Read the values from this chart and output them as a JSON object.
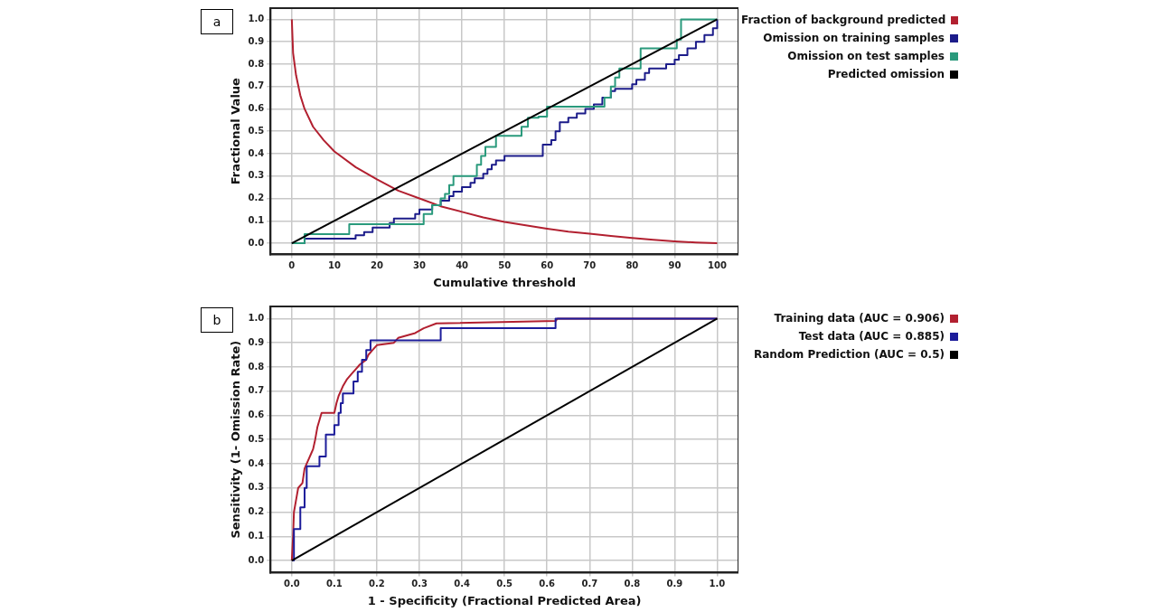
{
  "chart_data": [
    {
      "type": "line",
      "annotations": [
        "a"
      ],
      "xlabel": "Cumulative threshold",
      "ylabel": "Fractional Value",
      "xlim": [
        -5,
        105
      ],
      "ylim": [
        -0.05,
        1.05
      ],
      "xticks": [
        0,
        10,
        20,
        30,
        40,
        50,
        60,
        70,
        80,
        90,
        100
      ],
      "yticks": [
        {
          "value": 0,
          "label": "0.0"
        },
        {
          "value": 0.1,
          "label": "0.1"
        },
        {
          "value": 0.2,
          "label": "0.2"
        },
        {
          "value": 0.3,
          "label": "0.3"
        },
        {
          "value": 0.4,
          "label": "0.4"
        },
        {
          "value": 0.5,
          "label": "0.5"
        },
        {
          "value": 0.6,
          "label": "0.6"
        },
        {
          "value": 0.7,
          "label": "0.7"
        },
        {
          "value": 0.8,
          "label": "0.8"
        },
        {
          "value": 0.9,
          "label": "0.9"
        },
        {
          "value": 1,
          "label": "1.0"
        }
      ],
      "grid": true,
      "legend": "top right",
      "series": [
        {
          "name": "Fraction of background predicted",
          "type": "line",
          "color": "#b22030",
          "x": [
            0,
            0.3,
            1,
            2,
            3,
            5,
            7.5,
            10,
            15,
            20,
            25,
            30,
            35,
            40,
            45,
            50,
            55,
            60,
            65,
            70,
            75,
            80,
            85,
            90,
            95,
            100
          ],
          "values": [
            1,
            0.85,
            0.75,
            0.66,
            0.6,
            0.52,
            0.46,
            0.41,
            0.34,
            0.285,
            0.235,
            0.2,
            0.165,
            0.14,
            0.115,
            0.095,
            0.08,
            0.065,
            0.052,
            0.042,
            0.032,
            0.023,
            0.015,
            0.008,
            0.003,
            0
          ]
        },
        {
          "name": "Omission on training samples",
          "type": "step",
          "color": "#1c1c8a",
          "x": [
            0,
            3,
            15,
            17,
            19,
            23,
            24,
            29,
            30,
            33,
            35,
            37,
            38,
            40,
            42,
            43,
            45,
            46,
            47,
            48,
            50,
            59,
            61,
            62,
            63,
            65,
            67,
            69,
            71,
            73,
            75,
            76,
            80,
            81,
            83,
            84,
            85,
            88,
            90,
            91,
            93,
            95,
            97,
            99,
            100
          ],
          "values": [
            0,
            0.02,
            0.035,
            0.05,
            0.07,
            0.09,
            0.11,
            0.13,
            0.15,
            0.17,
            0.19,
            0.21,
            0.23,
            0.25,
            0.27,
            0.29,
            0.31,
            0.33,
            0.35,
            0.37,
            0.39,
            0.44,
            0.46,
            0.5,
            0.54,
            0.56,
            0.58,
            0.6,
            0.62,
            0.65,
            0.68,
            0.69,
            0.71,
            0.73,
            0.76,
            0.78,
            0.78,
            0.8,
            0.82,
            0.84,
            0.87,
            0.9,
            0.93,
            0.96,
            1
          ]
        },
        {
          "name": "Omission on test samples",
          "type": "step",
          "color": "#2a9a7c",
          "x": [
            0,
            3,
            13.5,
            31,
            33,
            35,
            36,
            37,
            38,
            43.5,
            44.5,
            45.5,
            48,
            54,
            55.5,
            58,
            60,
            73.5,
            75,
            76,
            77,
            82,
            90.5,
            91.5,
            100
          ],
          "values": [
            0,
            0.04,
            0.085,
            0.13,
            0.17,
            0.2,
            0.22,
            0.26,
            0.3,
            0.35,
            0.39,
            0.43,
            0.48,
            0.52,
            0.56,
            0.565,
            0.61,
            0.65,
            0.7,
            0.74,
            0.78,
            0.87,
            0.91,
            1,
            1
          ]
        },
        {
          "name": "Predicted omission",
          "type": "line",
          "color": "#000000",
          "x": [
            0,
            100
          ],
          "values": [
            0,
            1
          ]
        }
      ]
    },
    {
      "type": "line",
      "annotations": [
        "b"
      ],
      "xlabel": "1 - Specificity (Fractional Predicted Area)",
      "ylabel": "Sensitivity (1- Omission Rate)",
      "xlim": [
        -0.05,
        1.05
      ],
      "ylim": [
        -0.05,
        1.05
      ],
      "xticks": [
        {
          "value": 0,
          "label": "0.0"
        },
        {
          "value": 0.1,
          "label": "0.1"
        },
        {
          "value": 0.2,
          "label": "0.2"
        },
        {
          "value": 0.3,
          "label": "0.3"
        },
        {
          "value": 0.4,
          "label": "0.4"
        },
        {
          "value": 0.5,
          "label": "0.5"
        },
        {
          "value": 0.6,
          "label": "0.6"
        },
        {
          "value": 0.7,
          "label": "0.7"
        },
        {
          "value": 0.8,
          "label": "0.8"
        },
        {
          "value": 0.9,
          "label": "0.9"
        },
        {
          "value": 1,
          "label": "1.0"
        }
      ],
      "yticks": [
        {
          "value": 0,
          "label": "0.0"
        },
        {
          "value": 0.1,
          "label": "0.1"
        },
        {
          "value": 0.2,
          "label": "0.2"
        },
        {
          "value": 0.3,
          "label": "0.3"
        },
        {
          "value": 0.4,
          "label": "0.4"
        },
        {
          "value": 0.5,
          "label": "0.5"
        },
        {
          "value": 0.6,
          "label": "0.6"
        },
        {
          "value": 0.7,
          "label": "0.7"
        },
        {
          "value": 0.8,
          "label": "0.8"
        },
        {
          "value": 0.9,
          "label": "0.9"
        },
        {
          "value": 1,
          "label": "1.0"
        }
      ],
      "grid": true,
      "legend": "top right",
      "series": [
        {
          "name": "Training data (AUC = 0.906)",
          "type": "line",
          "color": "#b22030",
          "x": [
            0,
            0.003,
            0.005,
            0.01,
            0.015,
            0.025,
            0.03,
            0.035,
            0.04,
            0.045,
            0.05,
            0.055,
            0.06,
            0.07,
            0.1,
            0.105,
            0.11,
            0.12,
            0.13,
            0.14,
            0.15,
            0.16,
            0.175,
            0.18,
            0.19,
            0.2,
            0.24,
            0.25,
            0.29,
            0.31,
            0.34,
            0.62,
            0.625,
            1
          ],
          "values": [
            0,
            0.1,
            0.2,
            0.25,
            0.3,
            0.32,
            0.38,
            0.4,
            0.42,
            0.44,
            0.46,
            0.5,
            0.55,
            0.61,
            0.61,
            0.65,
            0.68,
            0.72,
            0.75,
            0.77,
            0.79,
            0.81,
            0.83,
            0.85,
            0.87,
            0.89,
            0.9,
            0.92,
            0.94,
            0.96,
            0.98,
            0.99,
            1,
            1
          ]
        },
        {
          "name": "Test data (AUC = 0.885)",
          "type": "step",
          "color": "#1c1c9a",
          "x": [
            0,
            0.005,
            0.02,
            0.03,
            0.035,
            0.065,
            0.08,
            0.1,
            0.11,
            0.115,
            0.12,
            0.145,
            0.155,
            0.165,
            0.175,
            0.185,
            0.35,
            0.62,
            1
          ],
          "values": [
            0,
            0.13,
            0.22,
            0.3,
            0.39,
            0.43,
            0.52,
            0.56,
            0.61,
            0.65,
            0.69,
            0.74,
            0.78,
            0.83,
            0.87,
            0.91,
            0.96,
            1,
            1
          ]
        },
        {
          "name": "Random Prediction (AUC = 0.5)",
          "type": "line",
          "color": "#000000",
          "x": [
            0,
            1
          ],
          "values": [
            0,
            1
          ]
        }
      ]
    }
  ]
}
